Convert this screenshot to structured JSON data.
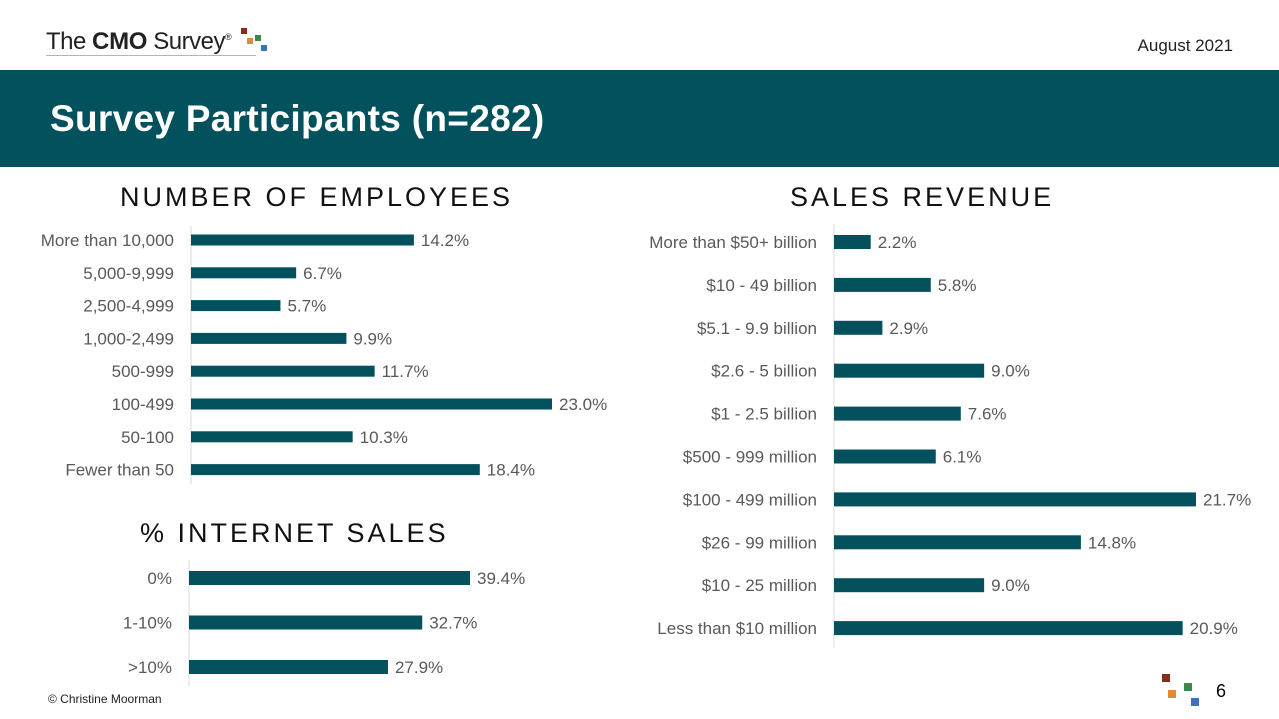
{
  "header": {
    "logo": {
      "prefix": "The ",
      "brand": "CMO",
      "suffix": " Survey",
      "registered": "®"
    },
    "date": "August 2021"
  },
  "banner": {
    "title": "Survey Participants (n=282)"
  },
  "colors": {
    "bar": "#02515c",
    "banner": "#02515c",
    "logo_squares": [
      "#8b2c1a",
      "#e08a35",
      "#3a8a4d",
      "#3a73c4"
    ]
  },
  "chart_data": [
    {
      "id": "employees",
      "type": "bar",
      "orientation": "horizontal",
      "title": "NUMBER OF EMPLOYEES",
      "categories": [
        "More than 10,000",
        "5,000-9,999",
        "2,500-4,999",
        "1,000-2,499",
        "500-999",
        "100-499",
        "50-100",
        "Fewer than 50"
      ],
      "values": [
        14.2,
        6.7,
        5.7,
        9.9,
        11.7,
        23.0,
        10.3,
        18.4
      ],
      "labels": [
        "14.2%",
        "6.7%",
        "5.7%",
        "9.9%",
        "11.7%",
        "23.0%",
        "10.3%",
        "18.4%"
      ],
      "unit": "%"
    },
    {
      "id": "internet",
      "type": "bar",
      "orientation": "horizontal",
      "title": "% INTERNET SALES",
      "categories": [
        "0%",
        "1-10%",
        ">10%"
      ],
      "values": [
        39.4,
        32.7,
        27.9
      ],
      "labels": [
        "39.4%",
        "32.7%",
        "27.9%"
      ],
      "unit": "%"
    },
    {
      "id": "revenue",
      "type": "bar",
      "orientation": "horizontal",
      "title": "SALES REVENUE",
      "categories": [
        "More than $50+ billion",
        "$10 - 49 billion",
        "$5.1 - 9.9 billion",
        "$2.6 - 5 billion",
        "$1 - 2.5 billion",
        "$500 - 999 million",
        "$100 - 499 million",
        "$26 - 99 million",
        "$10 - 25 million",
        "Less than $10 million"
      ],
      "values": [
        2.2,
        5.8,
        2.9,
        9.0,
        7.6,
        6.1,
        21.7,
        14.8,
        9.0,
        20.9
      ],
      "labels": [
        "2.2%",
        "5.8%",
        "2.9%",
        "9.0%",
        "7.6%",
        "6.1%",
        "21.7%",
        "14.8%",
        "9.0%",
        "20.9%"
      ],
      "unit": "%"
    }
  ],
  "footer": {
    "copyright": "© Christine Moorman",
    "page_number": "6"
  }
}
